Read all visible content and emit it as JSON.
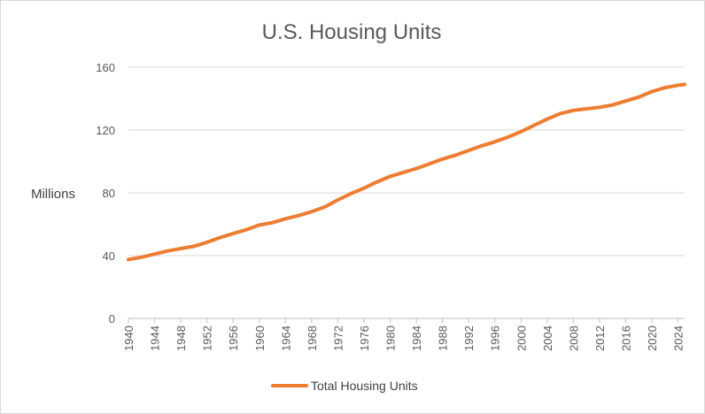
{
  "chart_data": {
    "type": "line",
    "title": "U.S. Housing Units",
    "xlabel": "",
    "ylabel": "Millions",
    "xlim": [
      1940,
      2025
    ],
    "ylim": [
      0,
      160
    ],
    "y_ticks": [
      "0",
      "40",
      "80",
      "120",
      "160"
    ],
    "x_ticks": [
      "1940",
      "1944",
      "1948",
      "1952",
      "1956",
      "1960",
      "1964",
      "1968",
      "1972",
      "1976",
      "1980",
      "1984",
      "1988",
      "1992",
      "1996",
      "2000",
      "2004",
      "2008",
      "2012",
      "2016",
      "2020",
      "2024"
    ],
    "grid": "horizontal",
    "legend_position": "bottom",
    "series": [
      {
        "name": "Total Housing Units",
        "color": "#ED7D31",
        "x": [
          1940,
          1942,
          1944,
          1946,
          1948,
          1950,
          1952,
          1954,
          1956,
          1958,
          1960,
          1962,
          1964,
          1966,
          1968,
          1970,
          1972,
          1974,
          1976,
          1978,
          1980,
          1982,
          1984,
          1986,
          1988,
          1990,
          1992,
          1994,
          1996,
          1998,
          2000,
          2002,
          2004,
          2006,
          2008,
          2010,
          2012,
          2014,
          2016,
          2018,
          2020,
          2022,
          2024,
          2025
        ],
        "y": [
          37.5,
          39,
          41,
          43,
          44.5,
          46,
          48.5,
          51.5,
          54,
          56.5,
          59.5,
          61,
          63.5,
          65.5,
          68,
          71,
          75.5,
          79.5,
          83,
          87,
          90.5,
          93,
          95.5,
          98.5,
          101.5,
          104,
          107,
          110,
          112.5,
          115.5,
          119,
          123,
          127,
          130.5,
          132.5,
          133.5,
          134.5,
          136,
          138.5,
          141,
          144.5,
          147,
          148.5,
          149
        ]
      }
    ]
  }
}
